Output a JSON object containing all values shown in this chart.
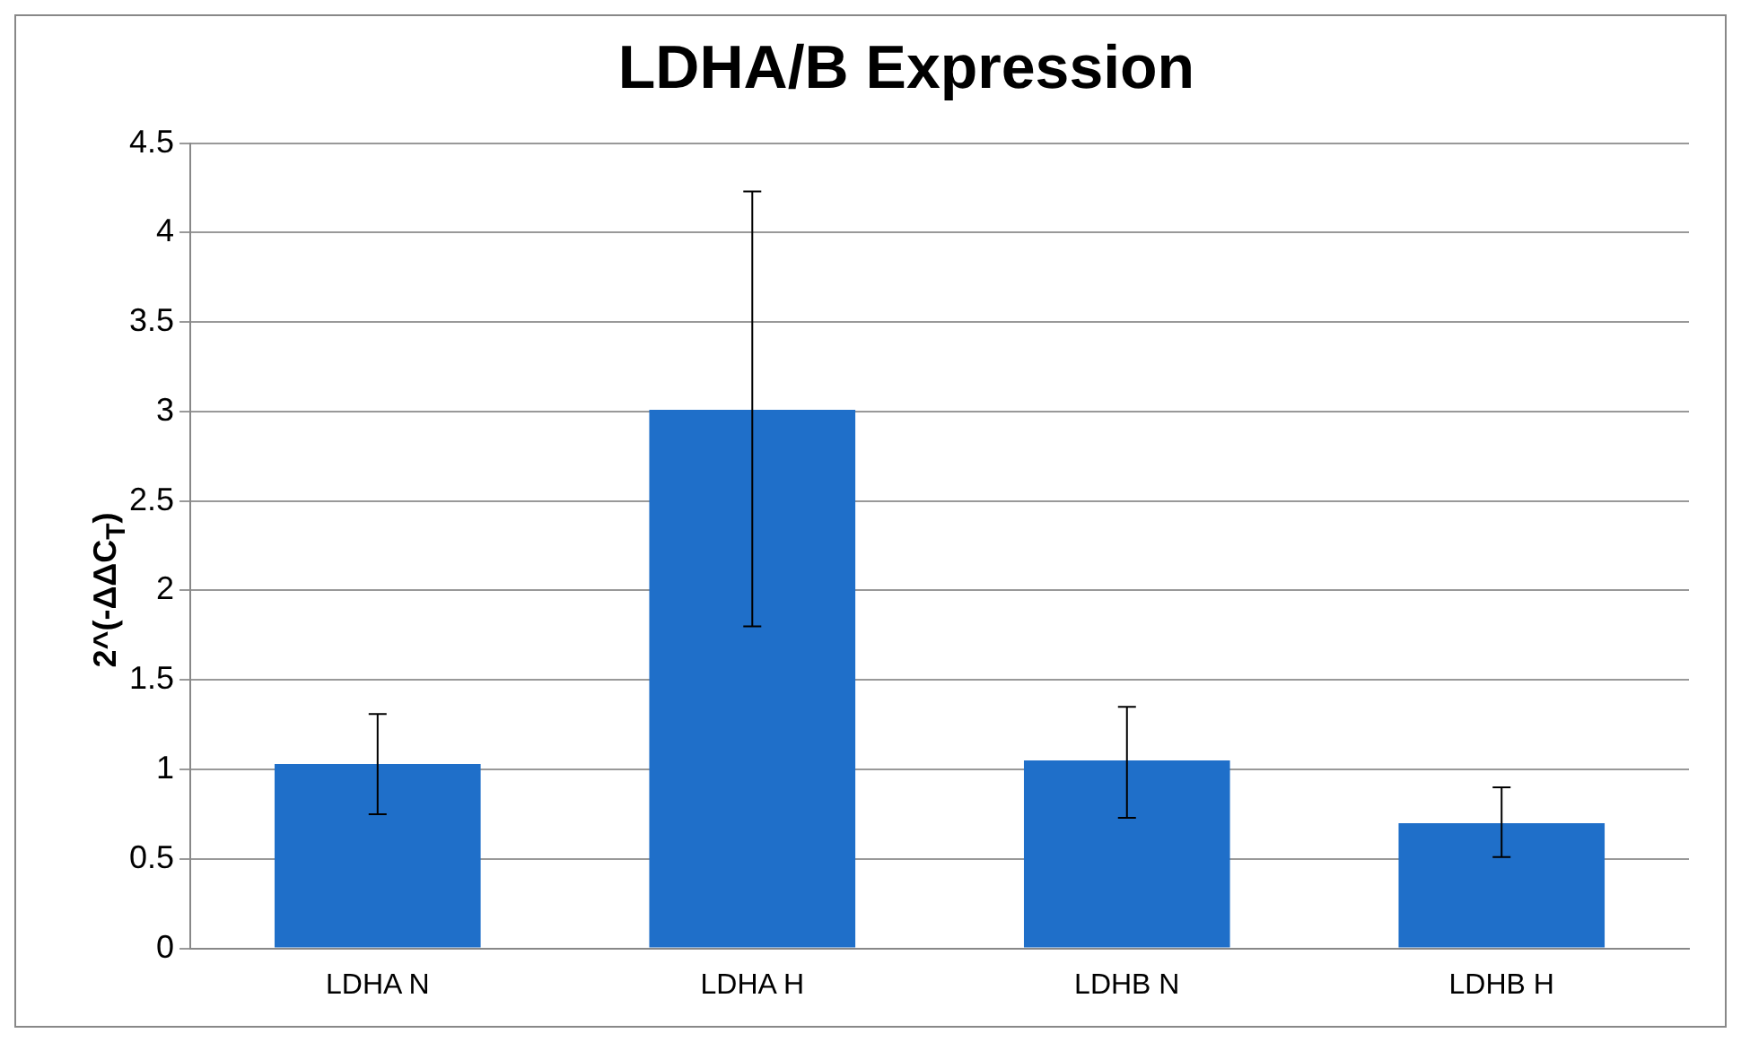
{
  "chart_data": {
    "type": "bar",
    "title": "LDHA/B Expression",
    "ylabel": "2^(-ΔΔC$_{T}$)",
    "categories": [
      "LDHA N",
      "LDHA H",
      "LDHB N",
      "LDHB H"
    ],
    "values": [
      1.03,
      3.01,
      1.05,
      0.7
    ],
    "errors": [
      [
        0.75,
        1.31
      ],
      [
        1.8,
        4.23
      ],
      [
        0.73,
        1.35
      ],
      [
        0.51,
        0.9
      ]
    ],
    "color": "#1f6fc9",
    "ylim": [
      0,
      4.5
    ],
    "yticks": [
      0,
      0.5,
      1,
      1.5,
      2,
      2.5,
      3,
      3.5,
      4,
      4.5
    ],
    "grid": "y",
    "legend": false
  }
}
